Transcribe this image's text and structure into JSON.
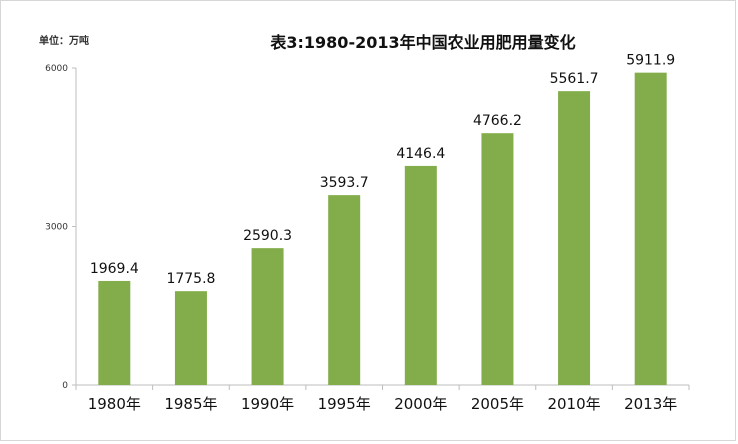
{
  "chart_data": {
    "type": "bar",
    "title": "表3:1980-2013年中国农业用肥用量变化",
    "unit_label": "单位：万吨",
    "categories": [
      "1980年",
      "1985年",
      "1990年",
      "1995年",
      "2000年",
      "2005年",
      "2010年",
      "2013年"
    ],
    "values": [
      1969.4,
      1775.8,
      2590.3,
      3593.7,
      4146.4,
      4766.2,
      5561.7,
      5911.9
    ],
    "value_labels": [
      "1969.4",
      "1775.8",
      "2590.3",
      "3593.7",
      "4146.4",
      "4766.2",
      "5561.7",
      "5911.9"
    ],
    "yticks": [
      0,
      3000,
      6000
    ],
    "ytick_labels": [
      "0",
      "3000",
      "6000"
    ],
    "ylim": [
      0,
      6000
    ],
    "xlabel": "",
    "ylabel": "",
    "grid": false,
    "legend": "none",
    "bar_color": "#82ad4a"
  }
}
